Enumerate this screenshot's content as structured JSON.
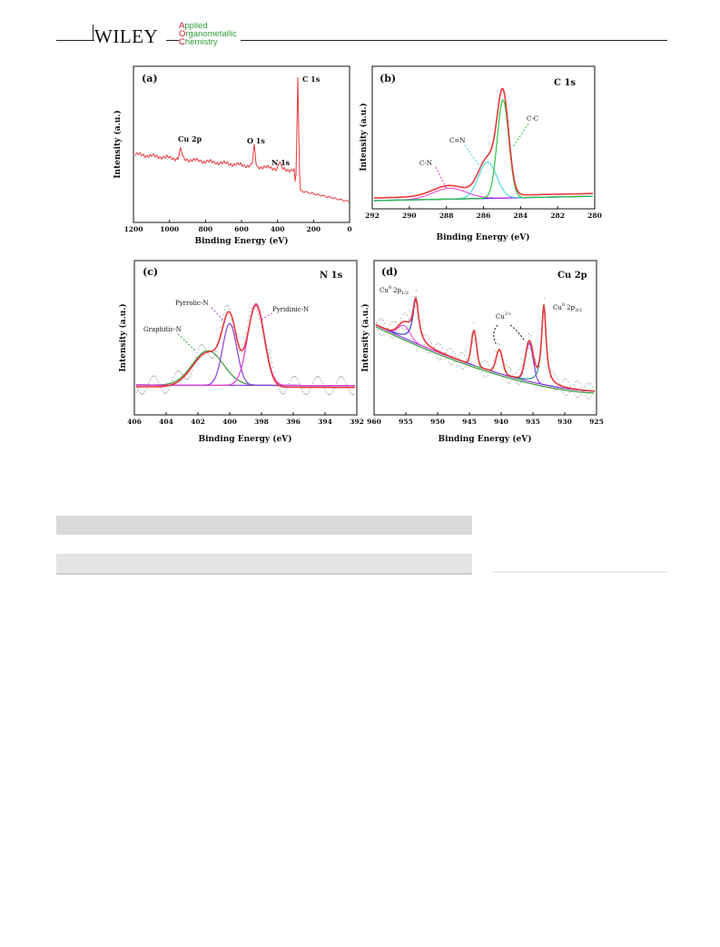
{
  "header": {
    "publisher": "WILEY",
    "journal_lines": [
      "Applied",
      "Organometallic",
      "Chemistry"
    ]
  },
  "figure": {
    "panels": [
      {
        "id": "a",
        "label": "(a)",
        "xlabel": "Binding Energy (eV)",
        "ylabel": "Intensity (a.u.)",
        "xticks": [
          "1200",
          "1000",
          "800",
          "600",
          "400",
          "200",
          "0"
        ],
        "annotations": [
          "Cu 2p",
          "O 1s",
          "N 1s",
          "C 1s"
        ]
      },
      {
        "id": "b",
        "label": "(b)",
        "title": "C 1s",
        "xlabel": "Binding Energy (eV)",
        "ylabel": "Intensity (a.u.)",
        "xticks": [
          "292",
          "290",
          "288",
          "286",
          "284",
          "282",
          "280"
        ],
        "annotations": [
          "C-N",
          "C=N",
          "C-C"
        ]
      },
      {
        "id": "c",
        "label": "(c)",
        "title": "N 1s",
        "xlabel": "Binding Energy (eV)",
        "ylabel": "Intensity (a.u.)",
        "xticks": [
          "406",
          "404",
          "402",
          "400",
          "398",
          "396",
          "394",
          "392"
        ],
        "annotations": [
          "Pyrrolic-N",
          "Pyridinic-N",
          "Graphitic-N"
        ]
      },
      {
        "id": "d",
        "label": "(d)",
        "title": "Cu 2p",
        "xlabel": "Binding Energy (eV)",
        "ylabel": "Intensity (a.u.)",
        "xticks": [
          "960",
          "955",
          "950",
          "945",
          "940",
          "935",
          "930",
          "925"
        ],
        "annotations": [
          "Cu",
          "0",
          "2p",
          "1/2",
          "Cu",
          "2+",
          "Cu",
          "0",
          "2p",
          "3/2"
        ]
      }
    ]
  },
  "colors": {
    "envelope": "#e8393b",
    "survey": "#e8393b",
    "cc": "#27c93f",
    "cn_double": "#2fd6e6",
    "cn_single": "#e83ad6",
    "background": "#3b3bd6",
    "pyrrolic": "#8b3ee0",
    "pyridinic": "#e83ad6",
    "graphitic": "#3a9a3a",
    "cu2": "#2fd6e6"
  }
}
